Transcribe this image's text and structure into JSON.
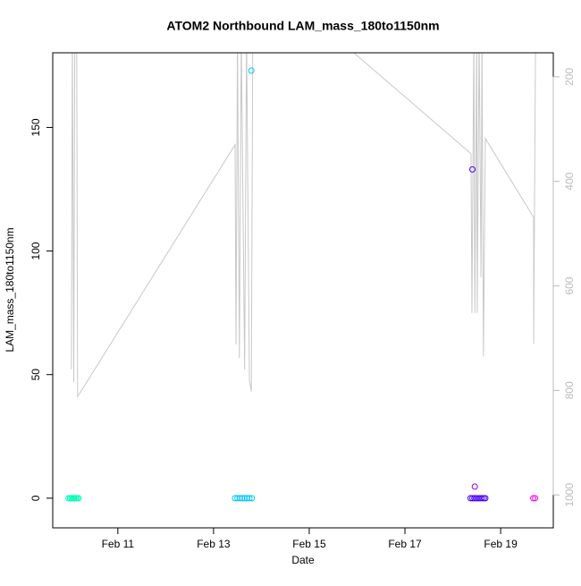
{
  "chart_data": {
    "type": "scatter",
    "title": "ATOM2 Northbound LAM_mass_180to1150nm",
    "x_label": "Date",
    "y_label": "LAM_mass_180to1150nm",
    "xlim": [
      9.64,
      20.1
    ],
    "xticks": [
      {
        "value": 11,
        "label": "Feb 11"
      },
      {
        "value": 13,
        "label": "Feb 13"
      },
      {
        "value": 15,
        "label": "Feb 15"
      },
      {
        "value": 17,
        "label": "Feb 17"
      },
      {
        "value": 19,
        "label": "Feb 19"
      }
    ],
    "ylim": [
      -12,
      180.2
    ],
    "yticks": [
      0,
      50,
      100,
      150
    ],
    "y2lim": [
      1063,
      154
    ],
    "y2ticks": [
      200,
      400,
      600,
      800,
      1000
    ],
    "y2color": "#bbbbbb",
    "series": [
      {
        "color": "#00FFB8",
        "x": [
          9.97,
          10.0,
          10.03,
          10.06,
          10.09,
          10.12,
          10.15,
          10.18
        ],
        "values": [
          0,
          0,
          0,
          0,
          0,
          0,
          0,
          0
        ]
      },
      {
        "color": "#00C4FF",
        "x": [
          13.45,
          13.5,
          13.55,
          13.6,
          13.65,
          13.7,
          13.75,
          13.8,
          13.79
        ],
        "values": [
          0,
          0,
          0,
          0,
          0,
          0,
          0,
          0,
          173
        ]
      },
      {
        "color": "#4A00FF",
        "x": [
          18.37,
          18.41,
          18.45,
          18.49,
          18.53,
          18.57,
          18.61,
          18.65,
          18.68,
          18.41
        ],
        "values": [
          0,
          0,
          0,
          0,
          0,
          0,
          0,
          0,
          0,
          133
        ]
      },
      {
        "color": "#8C00FF",
        "x": [
          18.46
        ],
        "values": [
          4.7
        ]
      },
      {
        "color": "#FF00F0",
        "x": [
          19.68,
          19.72
        ],
        "values": [
          0,
          0
        ]
      },
      {
        "color": "#c8c8c8",
        "axis": "y2",
        "line": true,
        "x": [
          10.03,
          10.05,
          10.08,
          10.1,
          10.14,
          10.16,
          13.45,
          13.47,
          13.5,
          13.54,
          13.58,
          13.65,
          13.69,
          13.75,
          13.79,
          13.82,
          15.73,
          18.38,
          18.4,
          18.44,
          18.46,
          18.5,
          18.51,
          18.55,
          18.59,
          18.61,
          18.64,
          18.68,
          19.69,
          19.69,
          19.73
        ],
        "values": [
          760,
          121,
          784,
          121,
          121,
          812,
          330,
          712,
          121,
          738,
          121,
          760,
          121,
          781,
          802,
          121,
          138,
          347,
          652,
          121,
          652,
          121,
          652,
          121,
          584,
          121,
          735,
          318,
          469,
          711,
          121
        ]
      }
    ]
  }
}
